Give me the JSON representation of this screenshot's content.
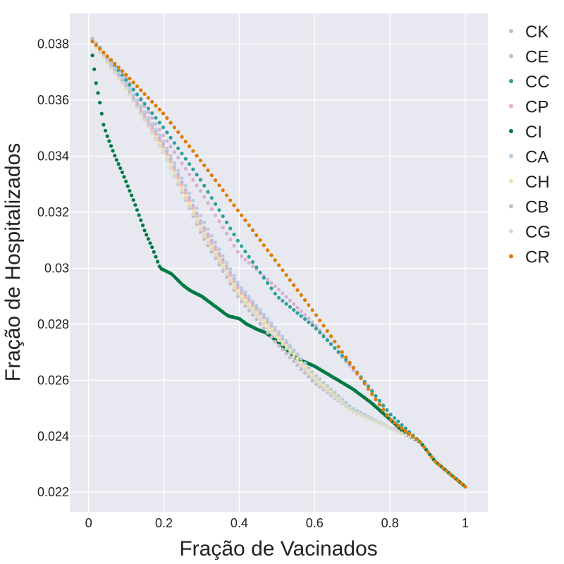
{
  "chart_data": {
    "type": "scatter",
    "xlabel": "Fração de Vacinados",
    "ylabel": "Fração de Hospitalizados",
    "xlim": [
      -0.05,
      1.06
    ],
    "ylim": [
      0.0213,
      0.0391
    ],
    "grid": true,
    "legend_position": "right",
    "x_ticks": [
      {
        "value": 0,
        "label": "0"
      },
      {
        "value": 0.2,
        "label": "0.2"
      },
      {
        "value": 0.4,
        "label": "0.4"
      },
      {
        "value": 0.6,
        "label": "0.6"
      },
      {
        "value": 0.8,
        "label": "0.8"
      },
      {
        "value": 1,
        "label": "1"
      }
    ],
    "y_ticks": [
      {
        "value": 0.022,
        "label": "0.022"
      },
      {
        "value": 0.024,
        "label": "0.024"
      },
      {
        "value": 0.026,
        "label": "0.026"
      },
      {
        "value": 0.028,
        "label": "0.028"
      },
      {
        "value": 0.03,
        "label": "0.03"
      },
      {
        "value": 0.032,
        "label": "0.032"
      },
      {
        "value": 0.034,
        "label": "0.034"
      },
      {
        "value": 0.036,
        "label": "0.036"
      },
      {
        "value": 0.038,
        "label": "0.038"
      }
    ],
    "series": [
      {
        "name": "CK",
        "color": "#c4b5d9",
        "points": [
          [
            0.01,
            0.0382
          ],
          [
            0.1,
            0.0366
          ],
          [
            0.2,
            0.0344
          ],
          [
            0.3,
            0.0316
          ],
          [
            0.4,
            0.0293
          ],
          [
            0.5,
            0.0277
          ],
          [
            0.6,
            0.0262
          ],
          [
            0.7,
            0.025
          ],
          [
            0.8,
            0.0243
          ],
          [
            0.85,
            0.0241
          ],
          [
            0.88,
            0.0238
          ],
          [
            0.92,
            0.0231
          ],
          [
            1.0,
            0.0222
          ]
        ]
      },
      {
        "name": "CE",
        "color": "#d6b0cf",
        "points": [
          [
            0.01,
            0.0381
          ],
          [
            0.1,
            0.0368
          ],
          [
            0.2,
            0.0347
          ],
          [
            0.3,
            0.0327
          ],
          [
            0.4,
            0.0305
          ],
          [
            0.45,
            0.0299
          ],
          [
            0.5,
            0.0293
          ],
          [
            0.6,
            0.028
          ],
          [
            0.7,
            0.0264
          ],
          [
            0.75,
            0.0257
          ],
          [
            0.8,
            0.0246
          ],
          [
            0.85,
            0.024
          ],
          [
            0.88,
            0.0238
          ],
          [
            0.92,
            0.0231
          ],
          [
            1.0,
            0.0222
          ]
        ]
      },
      {
        "name": "CC",
        "color": "#2ca39a",
        "points": [
          [
            0.01,
            0.0382
          ],
          [
            0.1,
            0.0367
          ],
          [
            0.2,
            0.035
          ],
          [
            0.3,
            0.0331
          ],
          [
            0.4,
            0.0309
          ],
          [
            0.5,
            0.029
          ],
          [
            0.6,
            0.0279
          ],
          [
            0.7,
            0.0265
          ],
          [
            0.8,
            0.0248
          ],
          [
            0.88,
            0.0238
          ],
          [
            0.92,
            0.0231
          ],
          [
            1.0,
            0.0222
          ]
        ]
      },
      {
        "name": "CP",
        "color": "#e8b5b1",
        "points": [
          [
            0.01,
            0.0381
          ],
          [
            0.1,
            0.0365
          ],
          [
            0.2,
            0.0343
          ],
          [
            0.3,
            0.0315
          ],
          [
            0.4,
            0.0292
          ],
          [
            0.5,
            0.0276
          ],
          [
            0.6,
            0.0261
          ],
          [
            0.7,
            0.025
          ],
          [
            0.8,
            0.0243
          ],
          [
            0.88,
            0.0238
          ],
          [
            0.92,
            0.0231
          ],
          [
            1.0,
            0.0222
          ]
        ]
      },
      {
        "name": "CI",
        "color": "#007a45",
        "points": [
          [
            0.01,
            0.0376
          ],
          [
            0.02,
            0.0366
          ],
          [
            0.03,
            0.0359
          ],
          [
            0.04,
            0.0351
          ],
          [
            0.05,
            0.0347
          ],
          [
            0.07,
            0.034
          ],
          [
            0.09,
            0.0334
          ],
          [
            0.12,
            0.0324
          ],
          [
            0.15,
            0.0313
          ],
          [
            0.17,
            0.0307
          ],
          [
            0.19,
            0.03
          ],
          [
            0.22,
            0.0298
          ],
          [
            0.25,
            0.0294
          ],
          [
            0.27,
            0.0292
          ],
          [
            0.3,
            0.029
          ],
          [
            0.32,
            0.0288
          ],
          [
            0.35,
            0.0285
          ],
          [
            0.37,
            0.0283
          ],
          [
            0.4,
            0.0282
          ],
          [
            0.42,
            0.028
          ],
          [
            0.45,
            0.0278
          ],
          [
            0.47,
            0.0277
          ],
          [
            0.5,
            0.0274
          ],
          [
            0.55,
            0.0268
          ],
          [
            0.6,
            0.0265
          ],
          [
            0.65,
            0.0261
          ],
          [
            0.7,
            0.0257
          ],
          [
            0.75,
            0.0252
          ],
          [
            0.8,
            0.0246
          ],
          [
            0.85,
            0.024
          ],
          [
            0.88,
            0.0238
          ],
          [
            0.92,
            0.0231
          ],
          [
            1.0,
            0.0222
          ]
        ]
      },
      {
        "name": "CA",
        "color": "#b3cde3",
        "points": [
          [
            0.01,
            0.0382
          ],
          [
            0.1,
            0.0366
          ],
          [
            0.2,
            0.0345
          ],
          [
            0.3,
            0.0318
          ],
          [
            0.4,
            0.0294
          ],
          [
            0.5,
            0.0278
          ],
          [
            0.6,
            0.0262
          ],
          [
            0.7,
            0.025
          ],
          [
            0.8,
            0.0243
          ],
          [
            0.88,
            0.0238
          ],
          [
            0.92,
            0.0231
          ],
          [
            1.0,
            0.0222
          ]
        ]
      },
      {
        "name": "CH",
        "color": "#f2e2a8",
        "points": [
          [
            0.01,
            0.0381
          ],
          [
            0.1,
            0.0364
          ],
          [
            0.2,
            0.0342
          ],
          [
            0.3,
            0.0314
          ],
          [
            0.4,
            0.0291
          ],
          [
            0.5,
            0.0276
          ],
          [
            0.6,
            0.0261
          ],
          [
            0.7,
            0.0249
          ],
          [
            0.8,
            0.0243
          ],
          [
            0.88,
            0.0238
          ],
          [
            0.92,
            0.0231
          ],
          [
            1.0,
            0.0222
          ]
        ]
      },
      {
        "name": "CB",
        "color": "#c3bccd",
        "points": [
          [
            0.01,
            0.0382
          ],
          [
            0.1,
            0.0365
          ],
          [
            0.2,
            0.0341
          ],
          [
            0.3,
            0.0312
          ],
          [
            0.4,
            0.0289
          ],
          [
            0.5,
            0.0273
          ],
          [
            0.6,
            0.0259
          ],
          [
            0.7,
            0.0249
          ],
          [
            0.8,
            0.0243
          ],
          [
            0.88,
            0.0238
          ],
          [
            0.92,
            0.0231
          ],
          [
            1.0,
            0.0222
          ]
        ]
      },
      {
        "name": "CG",
        "color": "#d9dcc4",
        "points": [
          [
            0.01,
            0.0381
          ],
          [
            0.1,
            0.0364
          ],
          [
            0.2,
            0.0341
          ],
          [
            0.3,
            0.0313
          ],
          [
            0.4,
            0.029
          ],
          [
            0.5,
            0.0275
          ],
          [
            0.6,
            0.026
          ],
          [
            0.7,
            0.0249
          ],
          [
            0.8,
            0.0243
          ],
          [
            0.88,
            0.0238
          ],
          [
            0.92,
            0.0231
          ],
          [
            1.0,
            0.0222
          ]
        ]
      },
      {
        "name": "CR",
        "color": "#e07b00",
        "points": [
          [
            0.01,
            0.0381
          ],
          [
            0.1,
            0.0369
          ],
          [
            0.2,
            0.0355
          ],
          [
            0.3,
            0.0338
          ],
          [
            0.4,
            0.032
          ],
          [
            0.5,
            0.0302
          ],
          [
            0.6,
            0.0284
          ],
          [
            0.7,
            0.0265
          ],
          [
            0.8,
            0.0246
          ],
          [
            0.88,
            0.0238
          ],
          [
            0.92,
            0.0231
          ],
          [
            1.0,
            0.0222
          ]
        ]
      }
    ]
  }
}
